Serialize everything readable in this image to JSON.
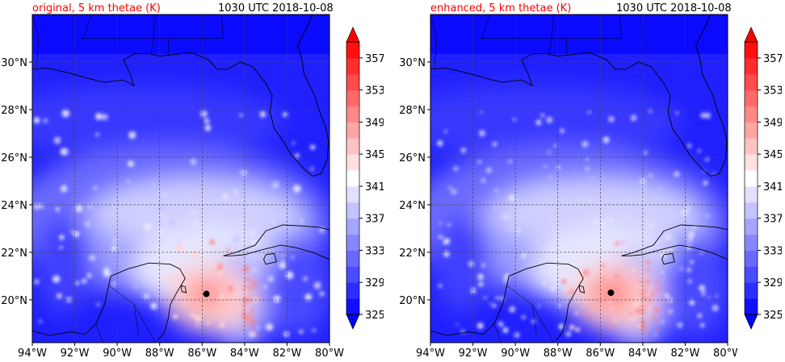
{
  "panels": [
    {
      "title": "original, 5 km thetae (K)",
      "time": "1030 UTC 2018-10-08",
      "storm_center": {
        "lon": -85.8,
        "lat": 20.25
      }
    },
    {
      "title": "enhanced, 5 km thetae (K)",
      "time": "1030 UTC 2018-10-08",
      "storm_center": {
        "lon": -85.5,
        "lat": 20.3
      }
    }
  ],
  "map": {
    "lon_ticks": [
      "94°W",
      "92°W",
      "90°W",
      "88°W",
      "86°W",
      "84°W",
      "82°W",
      "80°W"
    ],
    "lat_ticks": [
      "20°N",
      "22°N",
      "24°N",
      "26°N",
      "28°N",
      "30°N"
    ],
    "lon_range": [
      -94,
      -80
    ],
    "lat_range": [
      18.2,
      32
    ]
  },
  "colorbar": {
    "labels": [
      "325",
      "329",
      "333",
      "337",
      "341",
      "345",
      "349",
      "353",
      "357"
    ],
    "range": [
      325,
      359
    ],
    "colors": {
      "low": "#0000ff",
      "mid": "#ffffff",
      "high": "#ff0000"
    }
  },
  "colors": {
    "title": "#ff0000",
    "background_field": "#2a2aff",
    "coast": "#000000",
    "grid": "#444444"
  }
}
